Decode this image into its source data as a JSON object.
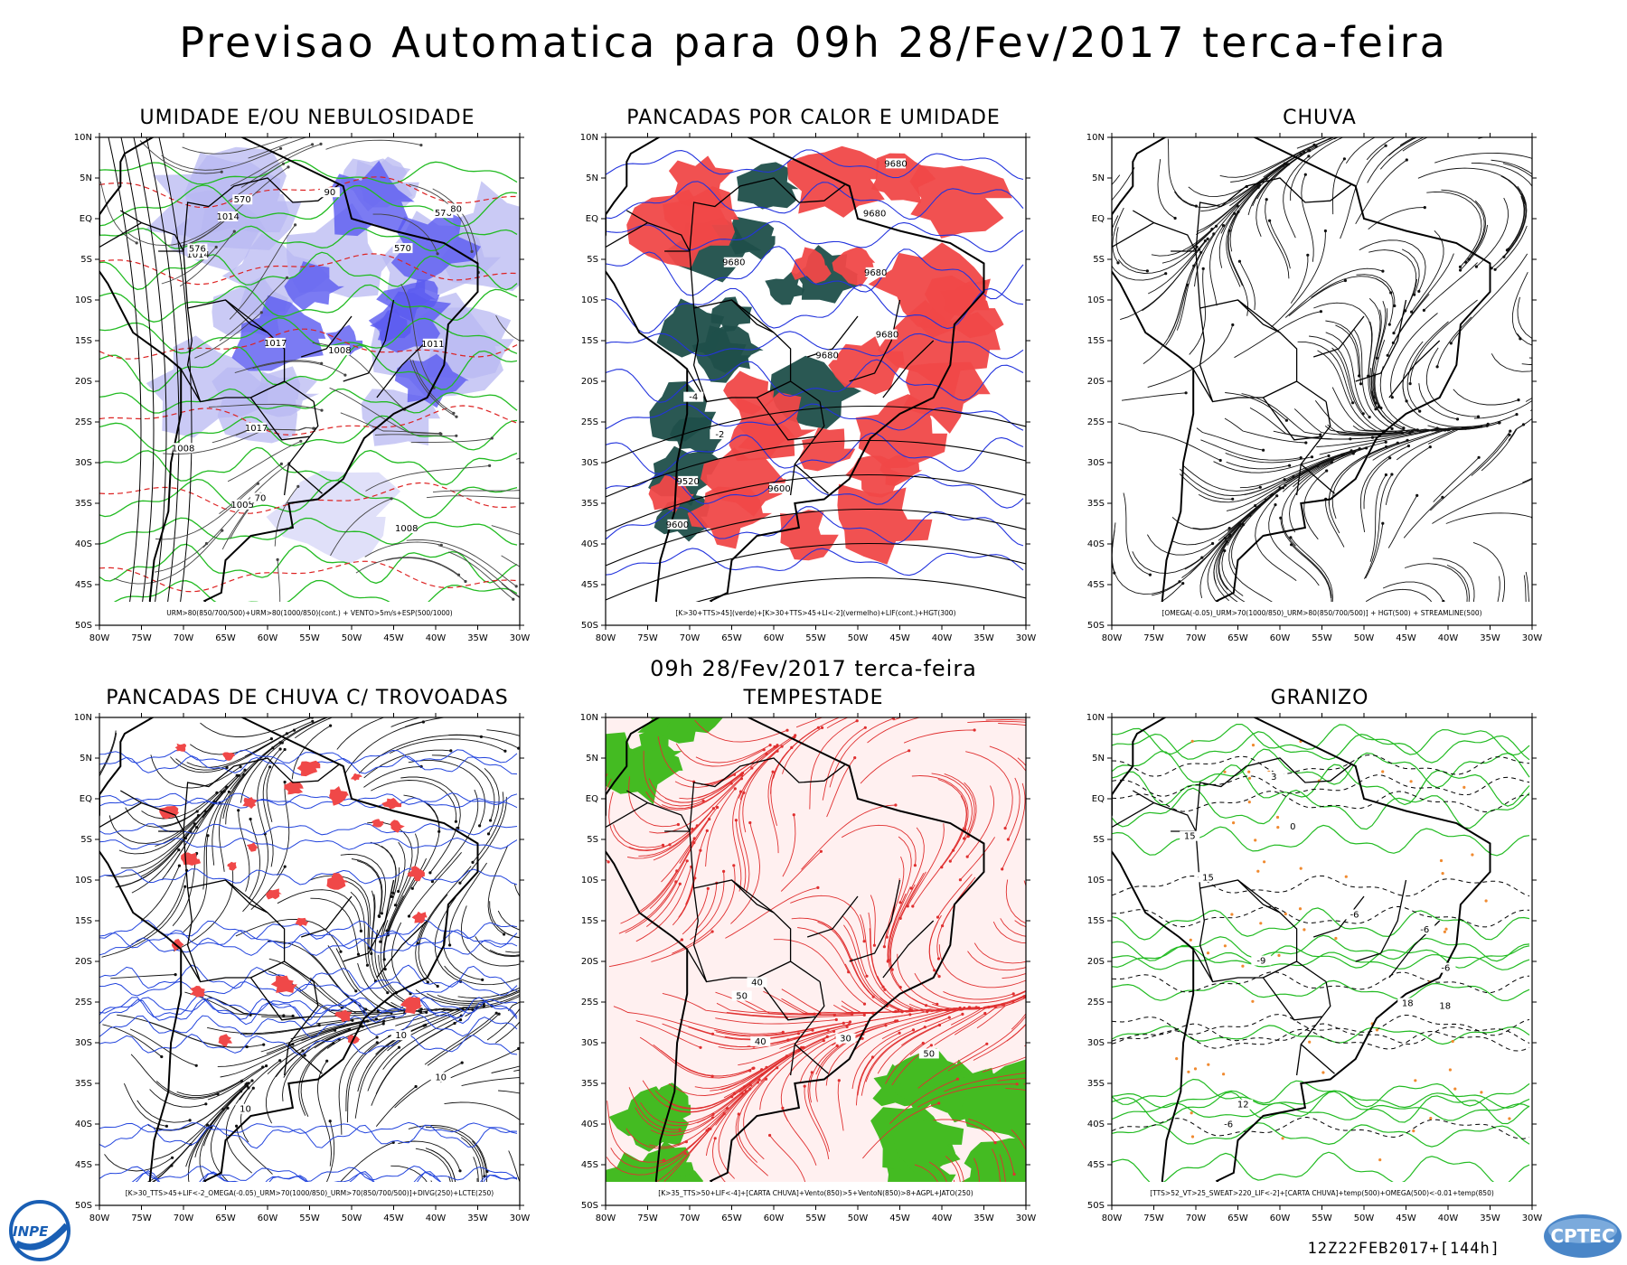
{
  "header": {
    "title": "Previsao Automatica  para 09h 28/Fev/2017 terca-feira",
    "subtitle": "09h 28/Fev/2017 terca-feira"
  },
  "axes": {
    "lat_labels": [
      "10N",
      "5N",
      "EQ",
      "5S",
      "10S",
      "15S",
      "20S",
      "25S",
      "30S",
      "35S",
      "40S",
      "45S",
      "50S"
    ],
    "lon_labels": [
      "80W",
      "75W",
      "70W",
      "65W",
      "60W",
      "55W",
      "50W",
      "45W",
      "40W",
      "35W",
      "30W"
    ]
  },
  "panels": [
    {
      "title": "UMIDADE E/OU NEBULOSIDADE",
      "caption": "URM>80(850/700/500)+URM>80(1000/850)(cont.) + VENTO>5m/s+ESP(500/1000)",
      "style": "humidity",
      "labels": [
        "1014",
        "1011",
        "1017",
        "1008",
        "1008",
        "1014",
        "1008",
        "1005",
        "1017",
        "576",
        "570",
        "570",
        "576",
        "80",
        "70",
        "90"
      ]
    },
    {
      "title": "PANCADAS POR CALOR E UMIDADE",
      "caption": "[K>30+TTS>45](verde)+[K>30+TTS>45+LI<-2](vermelho)+LIF(cont.)+HGT(300)",
      "style": "heat",
      "labels": [
        "9680",
        "9680",
        "9680",
        "9680",
        "9680",
        "9680",
        "9600",
        "9600",
        "9520",
        "-2",
        "-4"
      ]
    },
    {
      "title": "CHUVA",
      "caption": "[OMEGA(-0.05)_URM>70(1000/850)_URM>80(850/700/500)] + HGT(500) + STREAMLINE(500)",
      "style": "streamline",
      "labels": []
    },
    {
      "title": "PANCADAS DE CHUVA C/ TROVOADAS",
      "caption": "[K>30_TTS>45+LIF<-2_OMEGA(-0.05)_URM>70(1000/850)_URM>70(850/700/500)]+DIVG(250)+LCTE(250)",
      "style": "thunder",
      "labels": [
        "10",
        "10",
        "10"
      ]
    },
    {
      "title": "TEMPESTADE",
      "caption": "[K>35_TTS>50+LIF<-4]+[CARTA CHUVA]+Vento(850)>5+VentoN(850)>8+AGPL+JATO(250)",
      "style": "storm",
      "labels": [
        "40",
        "50",
        "30",
        "40",
        "50"
      ]
    },
    {
      "title": "GRANIZO",
      "caption": "[TTS>52_VT>25_SWEAT>220_LIF<-2]+[CARTA CHUVA]+temp(500)+OMEGA(500)<-0.01+temp(850)",
      "style": "hail",
      "labels": [
        "-6",
        "-6",
        "-6",
        "-6",
        "-9",
        "15",
        "18",
        "18",
        "15",
        "12",
        "3",
        "0"
      ]
    }
  ],
  "footer": {
    "run": "12Z22FEB2017+[144h]",
    "logo_left": "INPE",
    "logo_right": "CPTEC"
  }
}
